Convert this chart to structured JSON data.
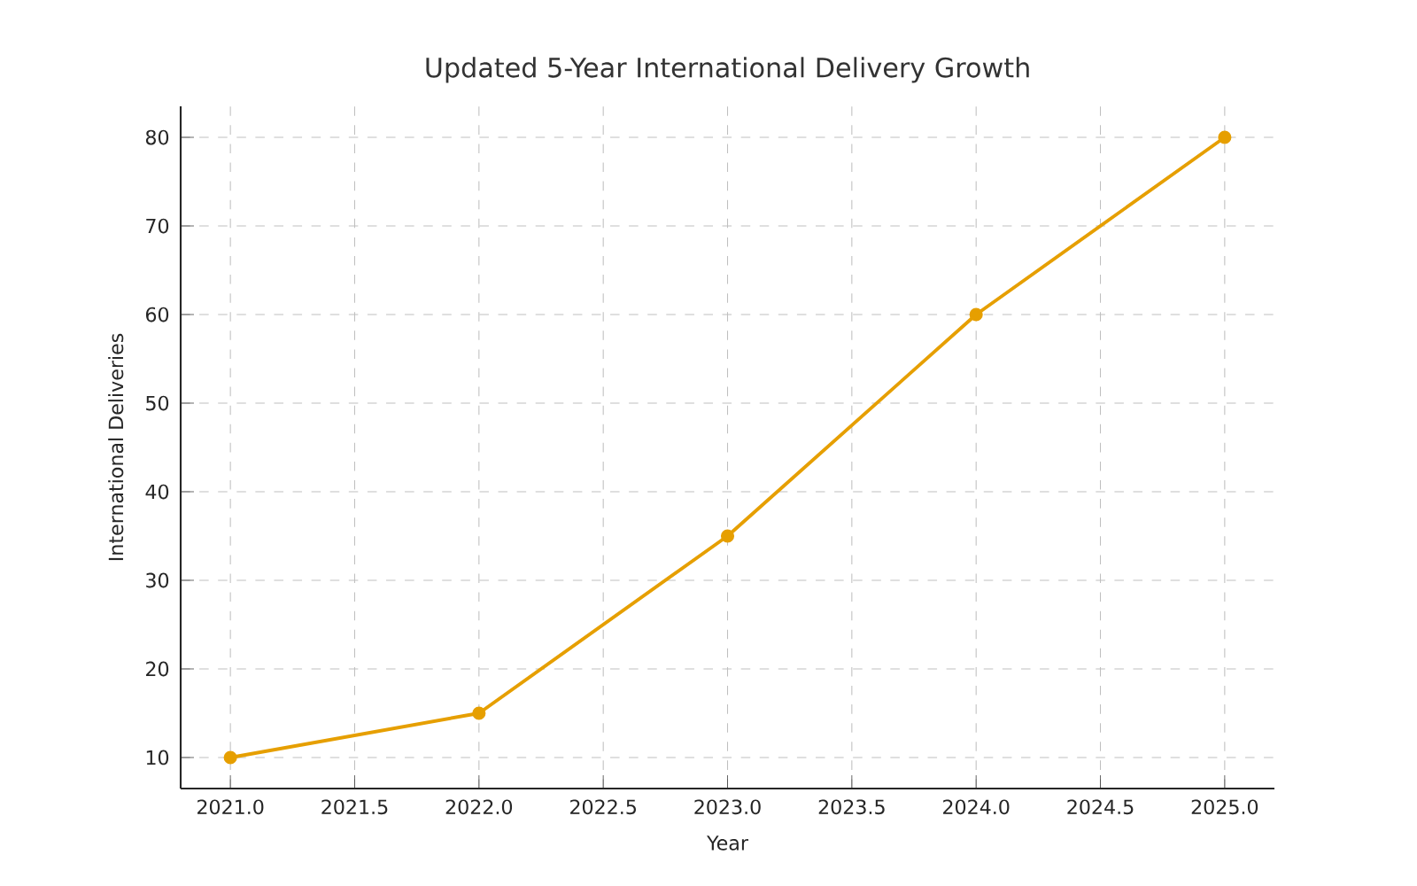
{
  "chart_data": {
    "type": "line",
    "title": "Updated 5-Year International Delivery Growth",
    "xlabel": "Year",
    "ylabel": "International Deliveries",
    "x": [
      2021,
      2022,
      2023,
      2024,
      2025
    ],
    "series": [
      {
        "color": "#e69f00",
        "values": [
          10,
          15,
          35,
          60,
          80
        ]
      }
    ],
    "xlim": [
      2020.8,
      2025.2
    ],
    "xticks": [
      {
        "value": 2021,
        "label": "2021.0"
      },
      {
        "value": 2021.5,
        "label": "2021.5"
      },
      {
        "value": 2022,
        "label": "2022.0"
      },
      {
        "value": 2022.5,
        "label": "2022.5"
      },
      {
        "value": 2023,
        "label": "2023.0"
      },
      {
        "value": 2023.5,
        "label": "2023.5"
      },
      {
        "value": 2024,
        "label": "2024.0"
      },
      {
        "value": 2024.5,
        "label": "2024.5"
      },
      {
        "value": 2025,
        "label": "2025.0"
      }
    ],
    "ylim": [
      6.5,
      83.5
    ],
    "yticks": [
      10,
      20,
      30,
      40,
      50,
      60,
      70,
      80
    ],
    "grid": true,
    "marker": "circle",
    "line_style": "solid"
  }
}
